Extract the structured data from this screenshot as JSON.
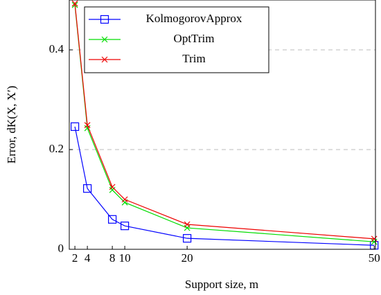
{
  "chart_data": {
    "type": "line",
    "xlabel": "Support size, m",
    "ylabel": "Error, dK(X, X′)",
    "x": [
      2,
      4,
      8,
      10,
      20,
      50
    ],
    "series": [
      {
        "name": "KolmogorovApprox",
        "color": "#0000ff",
        "marker": "square",
        "values": [
          0.246,
          0.122,
          0.06,
          0.047,
          0.022,
          0.008
        ]
      },
      {
        "name": "OptTrim",
        "color": "#00dd00",
        "marker": "x",
        "values": [
          0.49,
          0.243,
          0.119,
          0.094,
          0.043,
          0.015
        ]
      },
      {
        "name": "Trim",
        "color": "#ee0000",
        "marker": "x",
        "values": [
          0.493,
          0.249,
          0.125,
          0.1,
          0.05,
          0.021
        ]
      }
    ],
    "xlim": [
      1.1,
      50.2
    ],
    "ylim": [
      0,
      0.5
    ],
    "xticks": [
      2,
      4,
      8,
      10,
      20,
      50
    ],
    "yticks": [
      0,
      0.2,
      0.4
    ],
    "grid": true,
    "legend": "upper left"
  }
}
